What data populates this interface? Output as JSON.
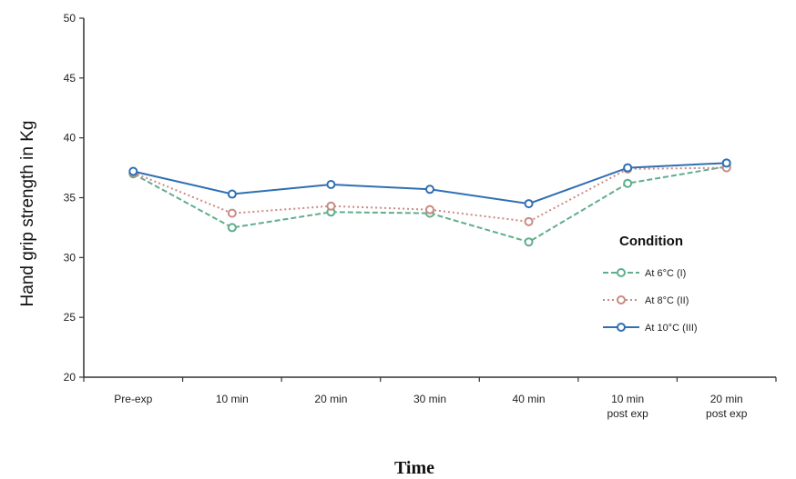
{
  "chart_data": {
    "type": "line",
    "title": "",
    "xlabel": "Time",
    "ylabel": "Hand grip strength in Kg",
    "ylim": [
      20,
      50
    ],
    "yticks": [
      20,
      25,
      30,
      35,
      40,
      45,
      50
    ],
    "categories": [
      [
        "Pre-exp"
      ],
      [
        "10 min"
      ],
      [
        "20 min"
      ],
      [
        "30 min"
      ],
      [
        "40 min"
      ],
      [
        "10 min",
        "post exp"
      ],
      [
        "20 min",
        "post exp"
      ]
    ],
    "legend": {
      "title": "Condition",
      "placement": "right"
    },
    "series": [
      {
        "name": "At 6°C (I)",
        "color": "#5fae8c",
        "dash": "dashed",
        "marker": "circle",
        "values": [
          37.0,
          32.5,
          33.8,
          33.7,
          31.3,
          36.2,
          37.6
        ]
      },
      {
        "name": "At 8°C (II)",
        "color": "#c98a82",
        "dash": "dotted",
        "marker": "circle",
        "values": [
          37.1,
          33.7,
          34.3,
          34.0,
          33.0,
          37.4,
          37.5
        ]
      },
      {
        "name": "At 10°C (III)",
        "color": "#2f6fb3",
        "dash": "solid",
        "marker": "circle",
        "values": [
          37.2,
          35.3,
          36.1,
          35.7,
          34.5,
          37.5,
          37.9
        ]
      }
    ],
    "grid": false
  }
}
